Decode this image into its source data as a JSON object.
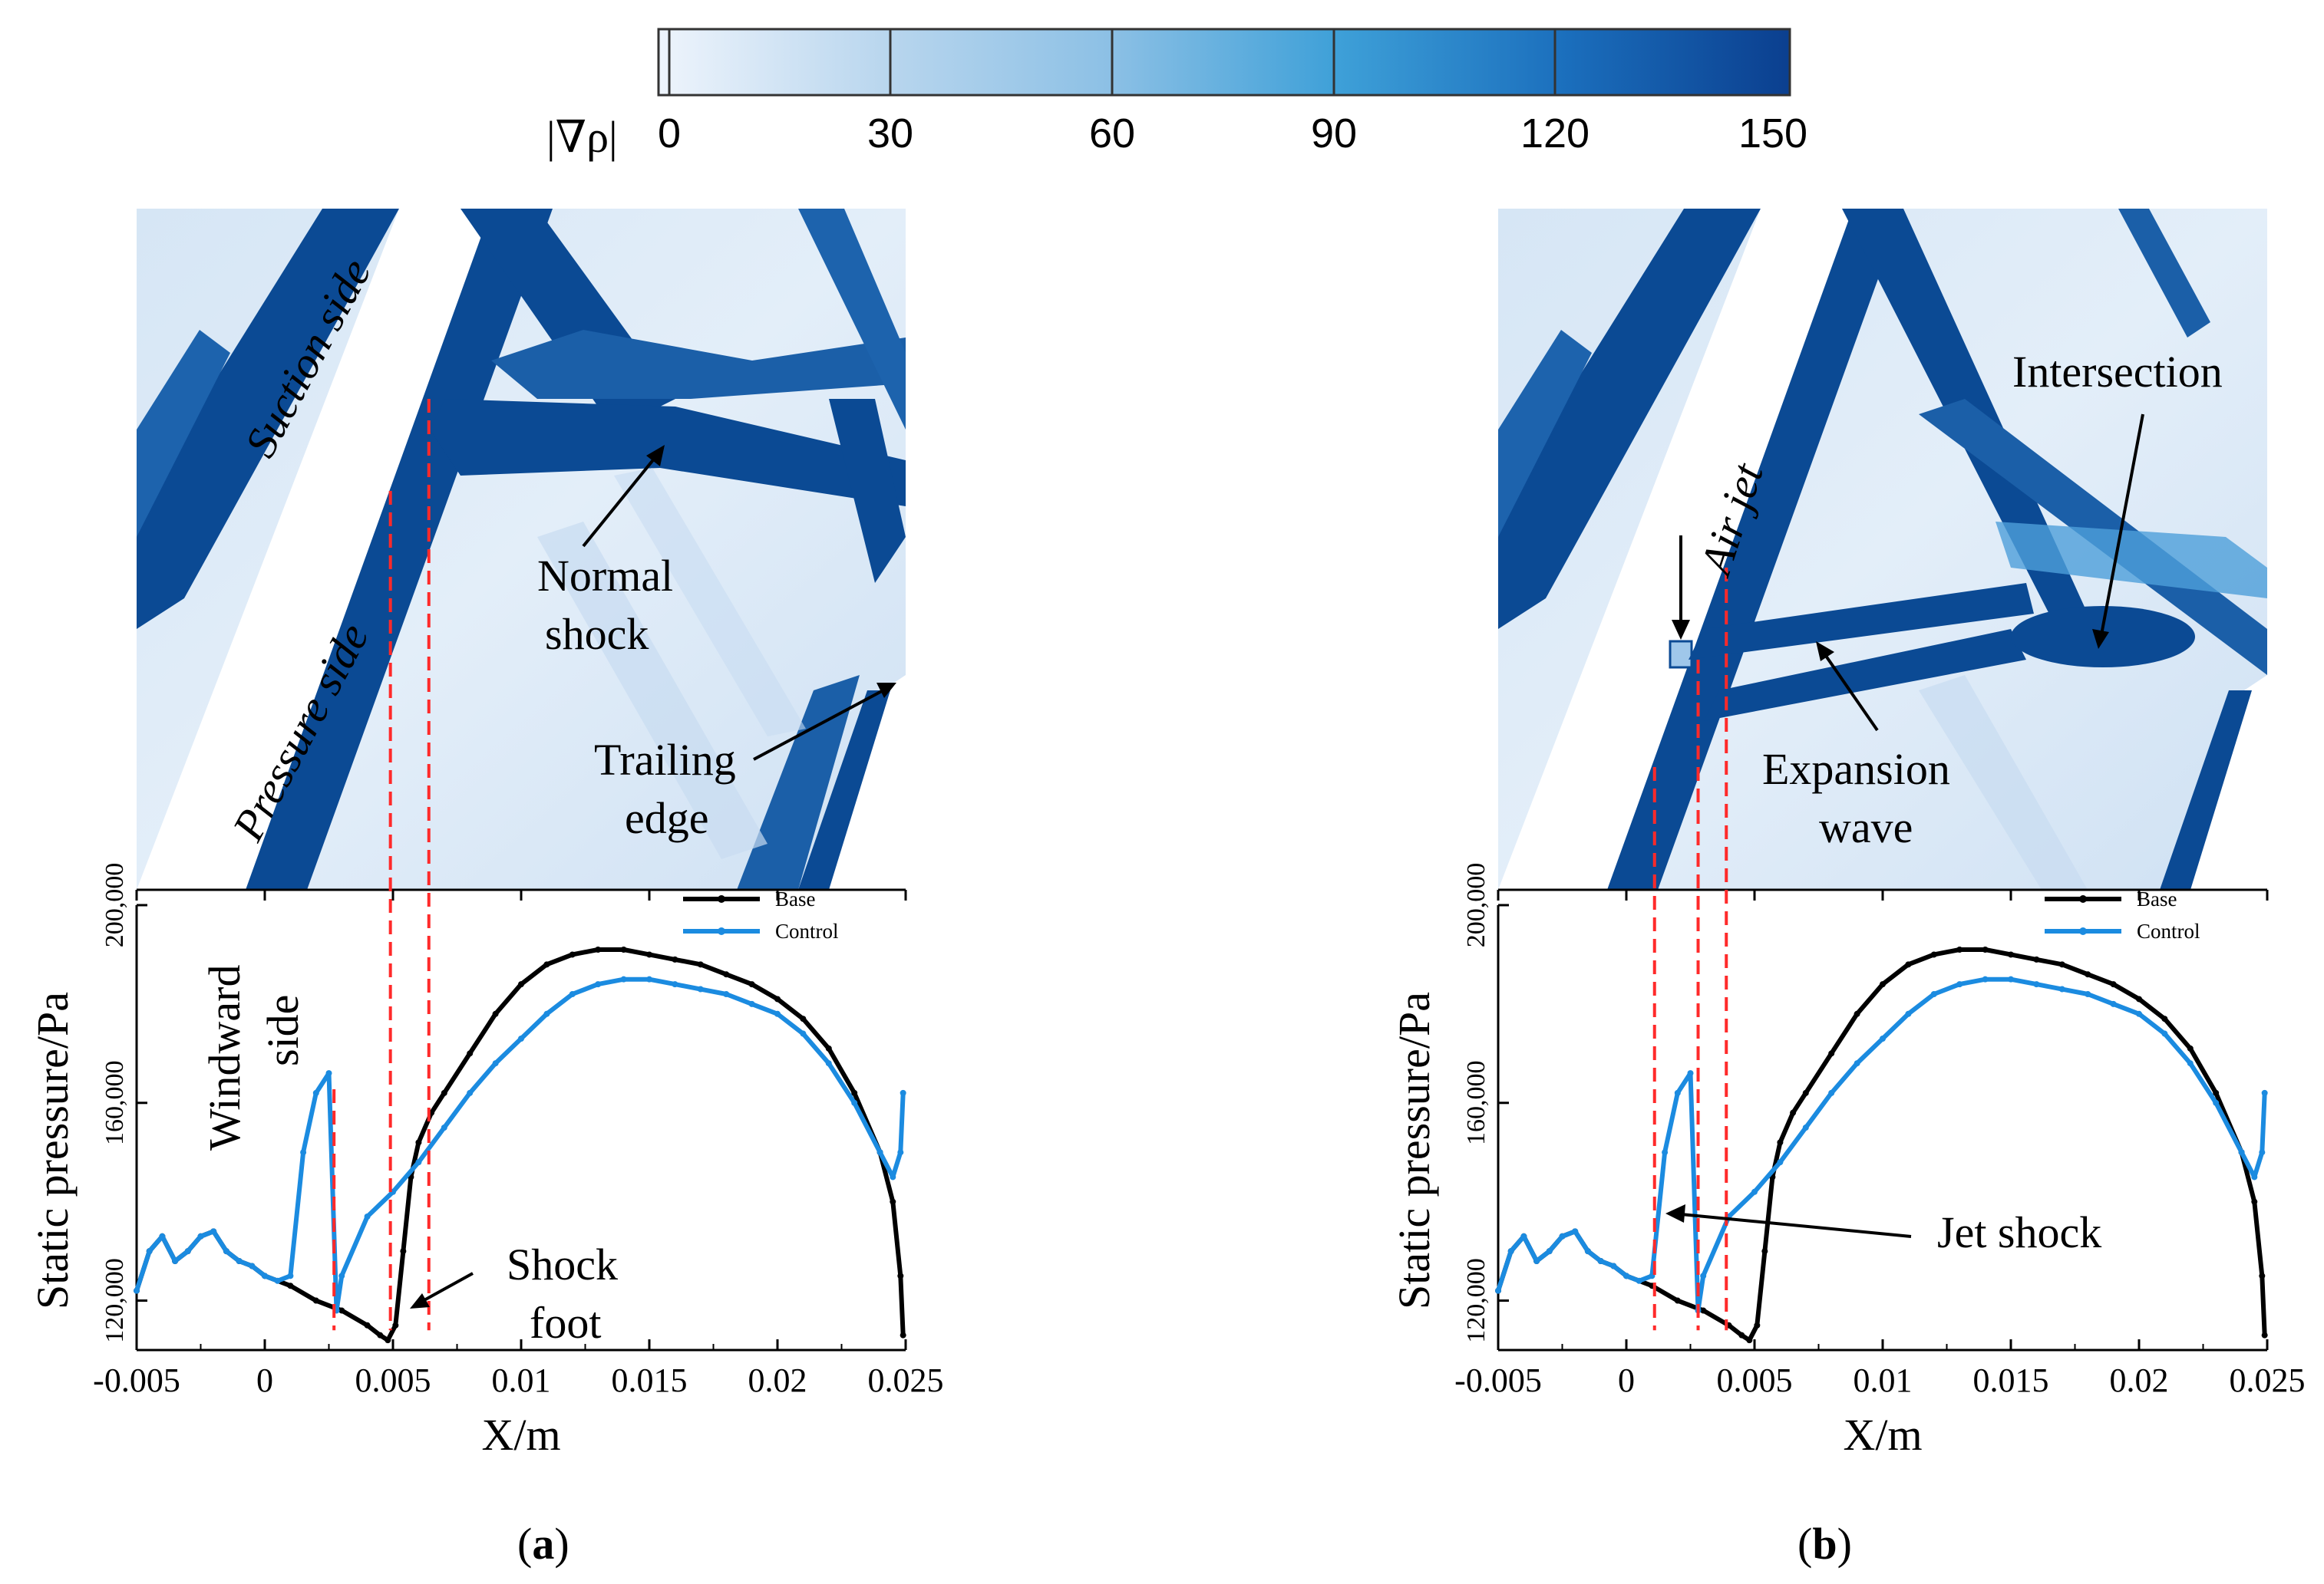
{
  "colorbar": {
    "symbol": "|∇ρ|",
    "ticks": [
      "0",
      "30",
      "60",
      "90",
      "120",
      "150"
    ],
    "min": 0,
    "max": 150,
    "colors": [
      "#e9f1fb",
      "#0b3f8f"
    ]
  },
  "colors": {
    "base": "#000000",
    "control": "#1b8be0",
    "marker": "#ff2a2a",
    "contour_dark": "#0b4a94",
    "contour_light": "#e4eef9"
  },
  "panels": [
    {
      "label": "(a)",
      "label_letter": "a",
      "contour_annotations": [
        "Suction side",
        "Pressure side",
        "Normal shock",
        "Trailing edge"
      ],
      "chart_annotations": [
        "Windward side",
        "Shock foot"
      ],
      "dashed_lines_x": [
        0.0027,
        0.0049,
        0.0064
      ]
    },
    {
      "label": "(b)",
      "label_letter": "b",
      "contour_annotations": [
        "Air jet",
        "Intersection",
        "Expansion wave"
      ],
      "chart_annotations": [
        "Jet shock"
      ],
      "dashed_lines_x": [
        0.0011,
        0.0028,
        0.0039
      ]
    }
  ],
  "annotation_lines": {
    "suction": "Suction side",
    "pressure": "Pressure side",
    "normal_1": "Normal",
    "normal_2": "shock",
    "trailing_1": "Trailing",
    "trailing_2": "edge",
    "windward_1": "Windward",
    "windward_2": "side",
    "shockfoot_1": "Shock",
    "shockfoot_2": "foot",
    "airjet": "Air jet",
    "intersection": "Intersection",
    "expansion_1": "Expansion",
    "expansion_2": "wave",
    "jetshock": "Jet shock"
  },
  "chart_data": [
    {
      "type": "line",
      "panel": "a",
      "title": "",
      "xlabel": "X/m",
      "ylabel": "Static pressure/Pa",
      "xlim": [
        -0.005,
        0.025
      ],
      "ylim": [
        110000,
        200000
      ],
      "xticks": [
        -0.005,
        0,
        0.005,
        0.01,
        0.015,
        0.02,
        0.025
      ],
      "xtick_labels": [
        "-0.005",
        "0",
        "0.005",
        "0.01",
        "0.015",
        "0.02",
        "0.025"
      ],
      "yticks": [
        120000,
        160000,
        200000
      ],
      "ytick_labels": [
        "120,000",
        "160,000",
        "200,000"
      ],
      "legend": [
        "Base",
        "Control"
      ],
      "legend_position": "top-right",
      "series": [
        {
          "name": "Base",
          "x": [
            -0.005,
            -0.0045,
            -0.004,
            -0.0035,
            -0.003,
            -0.0025,
            -0.002,
            -0.0015,
            -0.001,
            -0.0005,
            0,
            0.001,
            0.002,
            0.003,
            0.004,
            0.0045,
            0.0048,
            0.0051,
            0.0054,
            0.0057,
            0.006,
            0.0065,
            0.007,
            0.008,
            0.009,
            0.01,
            0.011,
            0.012,
            0.013,
            0.014,
            0.015,
            0.016,
            0.017,
            0.018,
            0.019,
            0.02,
            0.021,
            0.022,
            0.023,
            0.024,
            0.0245,
            0.0248,
            0.0249
          ],
          "y": [
            122000,
            130000,
            133000,
            128000,
            130000,
            133000,
            134000,
            130000,
            128000,
            127000,
            125000,
            123000,
            120000,
            118000,
            115000,
            113000,
            112000,
            115000,
            130000,
            145000,
            152000,
            158000,
            162000,
            170000,
            178000,
            184000,
            188000,
            190000,
            191000,
            191000,
            190000,
            189000,
            188000,
            186000,
            184000,
            181000,
            177000,
            171000,
            162000,
            150000,
            140000,
            125000,
            113000
          ]
        },
        {
          "name": "Control",
          "x": [
            -0.005,
            -0.0045,
            -0.004,
            -0.0035,
            -0.003,
            -0.0025,
            -0.002,
            -0.0015,
            -0.001,
            -0.0005,
            0,
            0.0005,
            0.001,
            0.0015,
            0.002,
            0.0025,
            0.0028,
            0.003,
            0.004,
            0.005,
            0.006,
            0.007,
            0.008,
            0.009,
            0.01,
            0.011,
            0.012,
            0.013,
            0.014,
            0.015,
            0.016,
            0.017,
            0.018,
            0.019,
            0.02,
            0.021,
            0.022,
            0.023,
            0.024,
            0.0245,
            0.0248,
            0.0249
          ],
          "y": [
            122000,
            130000,
            133000,
            128000,
            130000,
            133000,
            134000,
            130000,
            128000,
            127000,
            125000,
            124000,
            125000,
            150000,
            162000,
            166000,
            118000,
            125000,
            137000,
            142000,
            148000,
            155000,
            162000,
            168000,
            173000,
            178000,
            182000,
            184000,
            185000,
            185000,
            184000,
            183000,
            182000,
            180000,
            178000,
            174000,
            168000,
            160000,
            150000,
            145000,
            150000,
            162000
          ]
        }
      ]
    },
    {
      "type": "line",
      "panel": "b",
      "title": "",
      "xlabel": "X/m",
      "ylabel": "Static pressure/Pa",
      "xlim": [
        -0.005,
        0.025
      ],
      "ylim": [
        110000,
        200000
      ],
      "xticks": [
        -0.005,
        0,
        0.005,
        0.01,
        0.015,
        0.02,
        0.025
      ],
      "xtick_labels": [
        "-0.005",
        "0",
        "0.005",
        "0.01",
        "0.015",
        "0.02",
        "0.025"
      ],
      "yticks": [
        120000,
        160000,
        200000
      ],
      "ytick_labels": [
        "120,000",
        "160,000",
        "200,000"
      ],
      "legend": [
        "Base",
        "Control"
      ],
      "legend_position": "top-right",
      "series": [
        {
          "name": "Base",
          "x": [
            -0.005,
            -0.0045,
            -0.004,
            -0.0035,
            -0.003,
            -0.0025,
            -0.002,
            -0.0015,
            -0.001,
            -0.0005,
            0,
            0.001,
            0.002,
            0.003,
            0.004,
            0.0045,
            0.0048,
            0.0051,
            0.0054,
            0.0057,
            0.006,
            0.0065,
            0.007,
            0.008,
            0.009,
            0.01,
            0.011,
            0.012,
            0.013,
            0.014,
            0.015,
            0.016,
            0.017,
            0.018,
            0.019,
            0.02,
            0.021,
            0.022,
            0.023,
            0.024,
            0.0245,
            0.0248,
            0.0249
          ],
          "y": [
            122000,
            130000,
            133000,
            128000,
            130000,
            133000,
            134000,
            130000,
            128000,
            127000,
            125000,
            123000,
            120000,
            118000,
            115000,
            113000,
            112000,
            115000,
            130000,
            145000,
            152000,
            158000,
            162000,
            170000,
            178000,
            184000,
            188000,
            190000,
            191000,
            191000,
            190000,
            189000,
            188000,
            186000,
            184000,
            181000,
            177000,
            171000,
            162000,
            150000,
            140000,
            125000,
            113000
          ]
        },
        {
          "name": "Control",
          "x": [
            -0.005,
            -0.0045,
            -0.004,
            -0.0035,
            -0.003,
            -0.0025,
            -0.002,
            -0.0015,
            -0.001,
            -0.0005,
            0,
            0.0005,
            0.001,
            0.0015,
            0.002,
            0.0025,
            0.0028,
            0.003,
            0.004,
            0.005,
            0.006,
            0.007,
            0.008,
            0.009,
            0.01,
            0.011,
            0.012,
            0.013,
            0.014,
            0.015,
            0.016,
            0.017,
            0.018,
            0.019,
            0.02,
            0.021,
            0.022,
            0.023,
            0.024,
            0.0245,
            0.0248,
            0.0249
          ],
          "y": [
            122000,
            130000,
            133000,
            128000,
            130000,
            133000,
            134000,
            130000,
            128000,
            127000,
            125000,
            124000,
            125000,
            150000,
            162000,
            166000,
            118000,
            125000,
            137000,
            142000,
            148000,
            155000,
            162000,
            168000,
            173000,
            178000,
            182000,
            184000,
            185000,
            185000,
            184000,
            183000,
            182000,
            180000,
            178000,
            174000,
            168000,
            160000,
            150000,
            145000,
            150000,
            162000
          ]
        }
      ]
    }
  ]
}
